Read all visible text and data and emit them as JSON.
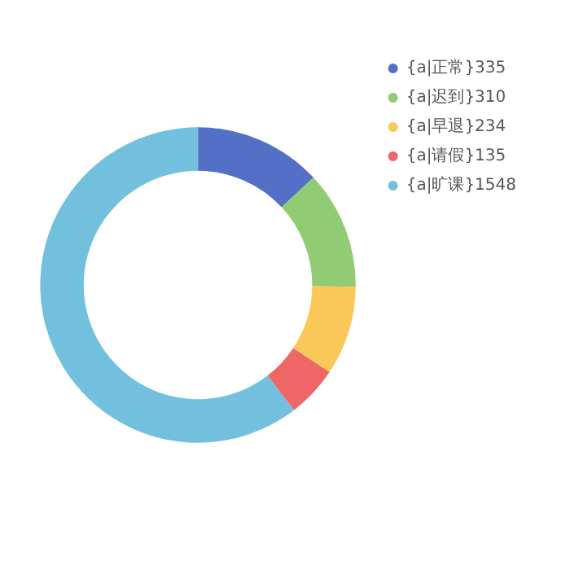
{
  "chart_data": {
    "type": "donut",
    "categories": [
      "{a|正常}335",
      "{a|迟到}310",
      "{a|早退}234",
      "{a|请假}135",
      "{a|旷课}1548"
    ],
    "values": [
      335,
      310,
      234,
      135,
      1548
    ],
    "colors": [
      "#5470c6",
      "#91cc75",
      "#fac858",
      "#ee6666",
      "#73c0de"
    ],
    "legend": "top right"
  }
}
